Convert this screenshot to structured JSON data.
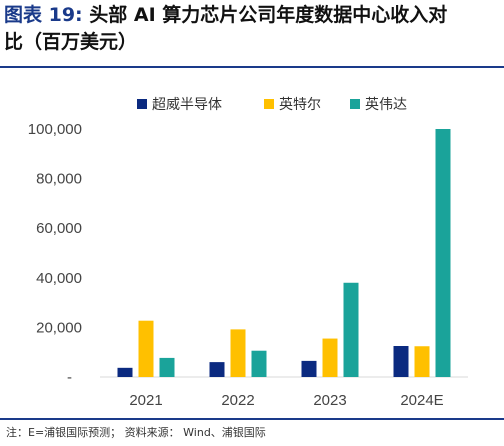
{
  "header": {
    "title_prefix": "图表 19:",
    "title_line1_rest": " 头部 AI 算力芯片公司年度数据中心收入对",
    "title_line2": "比（百万美元）"
  },
  "footer": {
    "note": "注：E=浦银国际预测；",
    "source": "  资料来源：  Wind、浦银国际"
  },
  "chart_data": {
    "type": "bar",
    "categories": [
      "2021",
      "2022",
      "2023",
      "2024E"
    ],
    "series": [
      {
        "name": "超威半导体",
        "color": "#0b2a80",
        "values": [
          3700,
          6000,
          6500,
          12500
        ]
      },
      {
        "name": "英特尔",
        "color": "#ffc000",
        "values": [
          22700,
          19200,
          15500,
          12400
        ]
      },
      {
        "name": "英伟达",
        "color": "#1aa39a",
        "values": [
          7700,
          10600,
          38000,
          100000
        ]
      }
    ],
    "ylim": [
      0,
      100000
    ],
    "yticks": [
      0,
      20000,
      40000,
      60000,
      80000,
      100000
    ],
    "ytick_labels": [
      "-",
      "20,000",
      "40,000",
      "60,000",
      "80,000",
      "100,000"
    ],
    "legend_position": "top",
    "grid": false
  }
}
